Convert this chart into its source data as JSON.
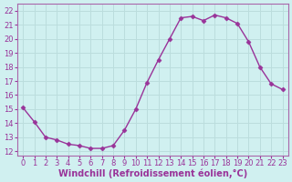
{
  "x": [
    0,
    1,
    2,
    3,
    4,
    5,
    6,
    7,
    8,
    9,
    10,
    11,
    12,
    13,
    14,
    15,
    16,
    17,
    18,
    19,
    20,
    21,
    22,
    23
  ],
  "y": [
    15.1,
    14.1,
    13.0,
    12.8,
    12.5,
    12.4,
    12.2,
    12.2,
    12.4,
    13.5,
    15.0,
    16.9,
    18.5,
    20.0,
    21.5,
    21.6,
    21.3,
    21.7,
    21.5,
    21.1,
    19.8,
    18.0,
    16.8,
    16.4
  ],
  "line_color": "#993399",
  "marker": "D",
  "markersize": 2.5,
  "linewidth": 1.0,
  "xlabel": "Windchill (Refroidissement éolien,°C)",
  "xlabel_fontsize": 7.0,
  "ylabel_ticks": [
    12,
    13,
    14,
    15,
    16,
    17,
    18,
    19,
    20,
    21,
    22
  ],
  "xlim": [
    -0.5,
    23.5
  ],
  "ylim": [
    11.7,
    22.5
  ],
  "bg_color": "#d0f0f0",
  "grid_color": "#bbdddd",
  "spine_color": "#aa66aa",
  "tick_color": "#993399",
  "tick_fontsize": 6.0,
  "xlabel_color": "#993399"
}
